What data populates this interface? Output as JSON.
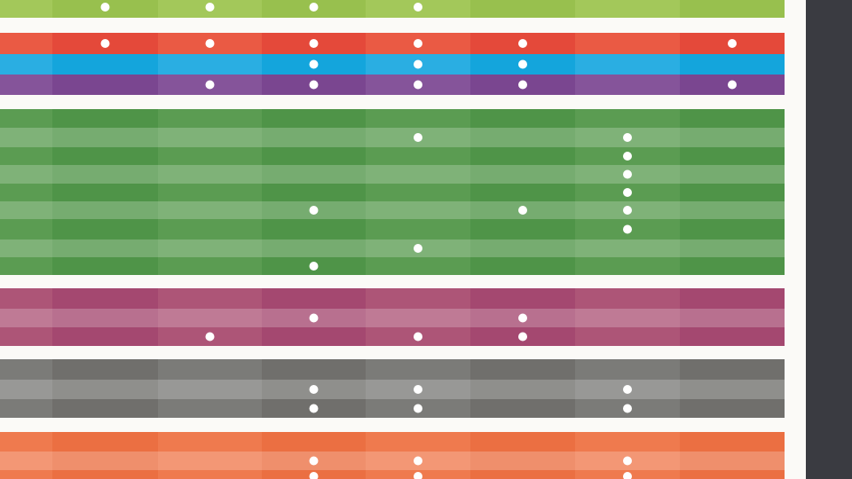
{
  "columns": 8,
  "groups": [
    {
      "name": "green-light",
      "colors": [
        "#a3c85a",
        "#98c04e"
      ],
      "rows": [
        {
          "dots": [
            1,
            2,
            3,
            4
          ]
        }
      ]
    },
    {
      "name": "red",
      "colors": [
        "#ea5a44",
        "#e4493a"
      ],
      "rows": [
        {
          "dots": [
            1,
            2,
            3,
            4,
            5,
            7
          ]
        }
      ]
    },
    {
      "name": "blue",
      "colors": [
        "#2aaee2",
        "#14a5dc"
      ],
      "rows": [
        {
          "dots": [
            3,
            4,
            5
          ]
        }
      ]
    },
    {
      "name": "purple",
      "colors": [
        "#85549a",
        "#7a4690"
      ],
      "rows": [
        {
          "dots": [
            2,
            3,
            4,
            5,
            7
          ]
        }
      ]
    },
    {
      "name": "green",
      "colors": [
        "#5b9c52",
        "#4f9448"
      ],
      "rows": [
        {
          "dots": []
        },
        {
          "dots": [
            4,
            6
          ]
        },
        {
          "dots": [
            6
          ]
        },
        {
          "dots": [
            6
          ]
        },
        {
          "dots": [
            6
          ]
        },
        {
          "dots": [
            3,
            5,
            6
          ]
        },
        {
          "dots": [
            6
          ]
        },
        {
          "dots": [
            4
          ]
        },
        {
          "dots": [
            3
          ]
        }
      ]
    },
    {
      "name": "magenta",
      "colors": [
        "#ad5577",
        "#a44870"
      ],
      "rows": [
        {
          "dots": []
        },
        {
          "dots": [
            3,
            5
          ]
        },
        {
          "dots": [
            2,
            4,
            5
          ]
        }
      ]
    },
    {
      "name": "grey",
      "colors": [
        "#7b7b78",
        "#706f6c"
      ],
      "rows": [
        {
          "dots": []
        },
        {
          "dots": [
            3,
            4,
            6
          ]
        },
        {
          "dots": [
            3,
            4,
            6
          ]
        }
      ]
    },
    {
      "name": "orange",
      "colors": [
        "#ef7a4e",
        "#eb6f42"
      ],
      "rows": [
        {
          "dots": []
        },
        {
          "dots": [
            3,
            4,
            6
          ]
        },
        {
          "dots": [
            3,
            4,
            6
          ]
        }
      ]
    }
  ]
}
